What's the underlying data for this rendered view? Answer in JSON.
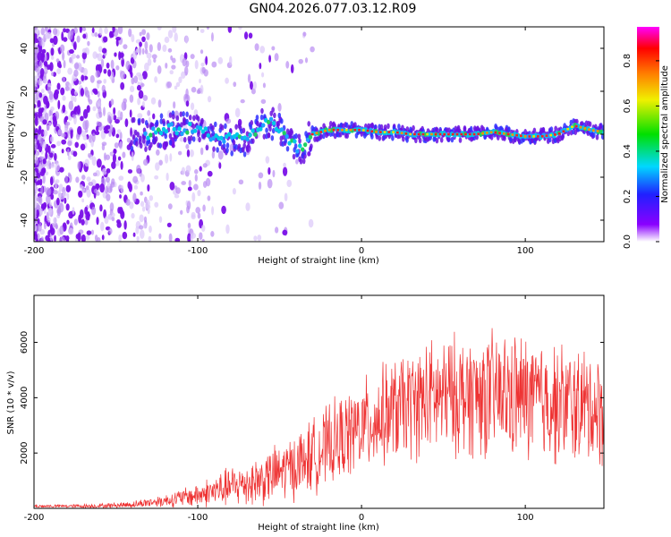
{
  "title": "GN04.2026.077.03.12.R09",
  "chart_data": [
    {
      "type": "heatmap",
      "xlabel": "Height of straight line (km)",
      "ylabel": "Frequency (Hz)",
      "xlim": [
        -200,
        148
      ],
      "ylim": [
        -50,
        50
      ],
      "xticks": [
        -200,
        -100,
        0,
        100
      ],
      "xtick_labels": [
        "-200",
        "-100",
        "0",
        "100"
      ],
      "yticks": [
        -40,
        -20,
        0,
        20,
        40
      ],
      "ytick_labels": [
        "-40",
        "-20",
        "0",
        "20",
        "40"
      ],
      "colorbar": {
        "label": "Normalized spectral amplitude",
        "range": [
          0,
          0.95
        ],
        "ticks": [
          0,
          0.2,
          0.4,
          0.6,
          0.8
        ],
        "tick_labels": [
          "0.0",
          "0.2",
          "0.4",
          "0.6",
          "0.8"
        ],
        "colors": [
          "#ffffff",
          "#8a00ff",
          "#2020ff",
          "#00e0ff",
          "#00e000",
          "#f0f000",
          "#ff8000",
          "#ff0000",
          "#ff00ff"
        ]
      },
      "ridge": {
        "x": [
          -130,
          -115,
          -100,
          -85,
          -70,
          -58,
          -50,
          -45,
          -40,
          -35,
          -32,
          -30,
          -20,
          -10,
          0,
          10,
          20,
          30,
          40,
          50,
          60,
          70,
          80,
          90,
          100,
          110,
          120,
          130,
          140,
          148
        ],
        "freq_hz": [
          0,
          3,
          2,
          -2,
          -3,
          6,
          3,
          -2,
          -5,
          -9,
          0,
          0,
          2,
          2,
          2,
          1,
          1,
          0,
          0,
          0,
          0,
          0,
          1,
          0,
          -1,
          -1,
          0,
          4,
          2,
          1
        ]
      }
    },
    {
      "type": "line",
      "xlabel": "Height of straight line (km)",
      "ylabel": "SNR (10 * v/v)",
      "xlim": [
        -200,
        148
      ],
      "ylim": [
        0,
        7700
      ],
      "xticks": [
        -200,
        -100,
        0,
        100
      ],
      "xtick_labels": [
        "-200",
        "-100",
        "0",
        "100"
      ],
      "yticks": [
        2000,
        4000,
        6000
      ],
      "ytick_labels": [
        "2000",
        "4000",
        "6000"
      ],
      "series": [
        {
          "name": "SNR",
          "color": "#ee3333",
          "envelope_x": [
            -200,
            -180,
            -160,
            -140,
            -120,
            -100,
            -80,
            -60,
            -40,
            -20,
            0,
            20,
            40,
            60,
            80,
            100,
            120,
            140,
            148
          ],
          "envelope_mean": [
            80,
            80,
            90,
            140,
            280,
            480,
            780,
            1050,
            1550,
            2250,
            2950,
            3550,
            3950,
            4100,
            4100,
            4000,
            3800,
            3650,
            3500
          ],
          "envelope_spread": [
            60,
            60,
            80,
            120,
            220,
            420,
            700,
            900,
            1150,
            1400,
            1600,
            1800,
            2000,
            2100,
            2200,
            2200,
            2100,
            2000,
            1900
          ]
        }
      ]
    }
  ]
}
